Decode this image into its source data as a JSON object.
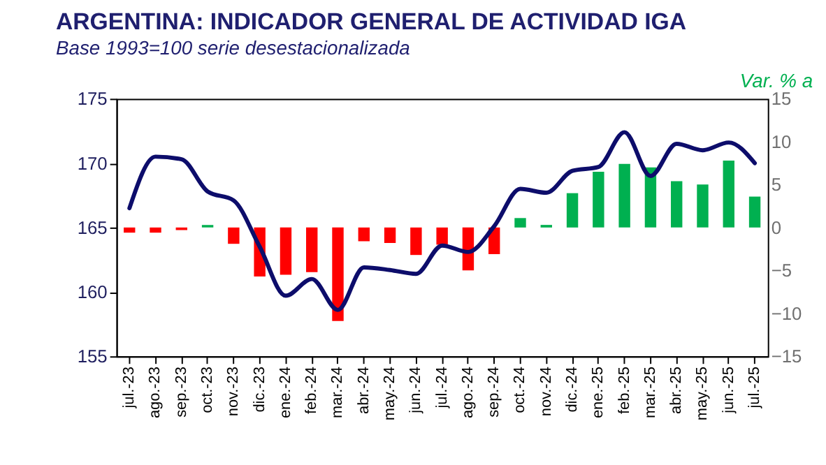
{
  "chart_data": {
    "type": "bar",
    "title": "ARGENTINA: INDICADOR GENERAL DE ACTIVIDAD IGA",
    "subtitle": "Base 1993=100 serie desestacionalizada",
    "y2label": "Var. % a",
    "categories": [
      "jul.-23",
      "ago.-23",
      "sep.-23",
      "oct.-23",
      "nov.-23",
      "dic.-23",
      "ene.-24",
      "feb.-24",
      "mar.-24",
      "abr.-24",
      "may.-24",
      "jun.-24",
      "jul.-24",
      "ago.-24",
      "sep.-24",
      "oct.-24",
      "nov.-24",
      "dic.-24",
      "ene.-25",
      "feb.-25",
      "mar.-25",
      "abr.-25",
      "may.-25",
      "jun.-25",
      "jul.-25"
    ],
    "series": [
      {
        "axis": "y2",
        "colors": [
          "#ff0000",
          "#ff0000",
          "#ff0000",
          "#00b050",
          "#ff0000",
          "#ff0000",
          "#ff0000",
          "#ff0000",
          "#ff0000",
          "#ff0000",
          "#ff0000",
          "#ff0000",
          "#ff0000",
          "#ff0000",
          "#ff0000",
          "#00b050",
          "#00b050",
          "#00b050",
          "#00b050",
          "#00b050",
          "#00b050",
          "#00b050",
          "#00b050",
          "#00b050",
          "#00b050"
        ],
        "values": [
          -0.6,
          -0.6,
          -0.3,
          0.3,
          -1.9,
          -5.7,
          -5.5,
          -5.2,
          -10.9,
          -1.6,
          -1.8,
          -3.2,
          -2.0,
          -5.0,
          -3.1,
          1.1,
          0.3,
          4.0,
          6.5,
          7.4,
          7.0,
          5.4,
          5.0,
          7.8,
          3.6
        ]
      },
      {
        "type": "line",
        "color": "#0d0d6b",
        "values": [
          166.5,
          170.5,
          170.3,
          167.8,
          167.1,
          163.5,
          159.7,
          161.0,
          158.6,
          161.9,
          161.7,
          161.4,
          163.6,
          163.1,
          165.1,
          168.0,
          167.7,
          169.4,
          169.7,
          172.4,
          169.0,
          171.5,
          171.0,
          171.6,
          170.0
        ]
      }
    ],
    "ylim": [
      155,
      175
    ],
    "yticks": [
      155,
      160,
      165,
      170,
      175
    ],
    "y2lim": [
      -15,
      15
    ],
    "y2ticks": [
      -15,
      -10,
      -5,
      0,
      5,
      10,
      15
    ],
    "grid": false
  }
}
